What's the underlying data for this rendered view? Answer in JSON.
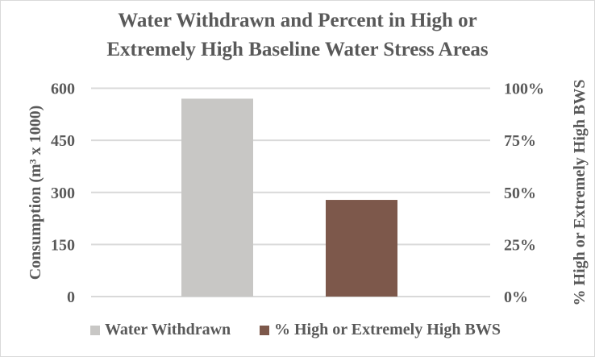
{
  "chart_data": {
    "type": "bar",
    "title": "Water Withdrawn and Percent in High or Extremely High Baseline Water Stress Areas",
    "title_lines": [
      "Water Withdrawn and Percent in High or",
      "Extremely High Baseline Water Stress Areas"
    ],
    "ylabel": "Consumption  (m³ x 1000)",
    "ylabel2": "% High or Extremely High BWS",
    "ylim": [
      0,
      600
    ],
    "ylim2": [
      0,
      1.0
    ],
    "yticks": [
      "0",
      "150",
      "300",
      "450",
      "600"
    ],
    "yticks2": [
      "0%",
      "25%",
      "50%",
      "75%",
      "100%"
    ],
    "grid": true,
    "legend_position": "bottom",
    "series": [
      {
        "name": "Water Withdrawn",
        "axis": "left",
        "value": 570,
        "color": "#c8c7c5"
      },
      {
        "name": "% High or Extremely High BWS",
        "axis": "right",
        "value": 0.464,
        "color": "#7d584b"
      }
    ]
  }
}
